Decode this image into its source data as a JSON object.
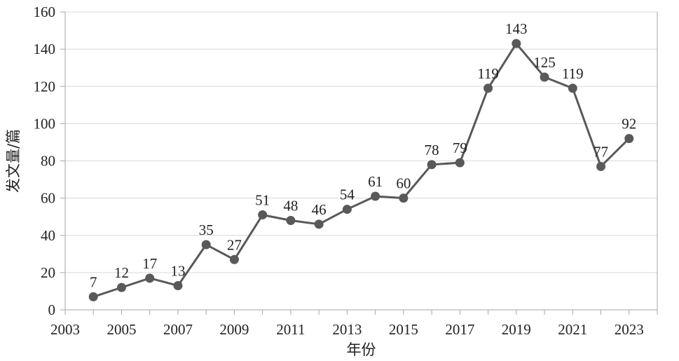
{
  "chart_data": {
    "type": "line",
    "xlabel": "年份",
    "ylabel": "发文量/篇",
    "x": [
      2004,
      2005,
      2006,
      2007,
      2008,
      2009,
      2010,
      2011,
      2012,
      2013,
      2014,
      2015,
      2016,
      2017,
      2018,
      2019,
      2020,
      2021,
      2022,
      2023
    ],
    "series": [
      {
        "values": [
          7,
          12,
          17,
          13,
          35,
          27,
          51,
          48,
          46,
          54,
          61,
          60,
          78,
          79,
          119,
          143,
          125,
          119,
          77,
          92
        ],
        "color": "#595959"
      }
    ],
    "data_labels": [
      "7",
      "12",
      "17",
      "13",
      "35",
      "27",
      "51",
      "48",
      "46",
      "54",
      "61",
      "60",
      "78",
      "79",
      "119",
      "143",
      "125",
      "119",
      "77",
      "92"
    ],
    "xlim": [
      2003,
      2024
    ],
    "ylim": [
      0,
      160
    ],
    "x_ticks": [
      2003,
      2005,
      2007,
      2009,
      2011,
      2013,
      2015,
      2017,
      2019,
      2021,
      2023
    ],
    "y_ticks": [
      0,
      20,
      40,
      60,
      80,
      100,
      120,
      140,
      160
    ],
    "grid": true,
    "legend": "none",
    "colors": {
      "line": "#595959",
      "grid": "#d9d9d9",
      "axis": "#a6a6a6",
      "text": "#222222"
    }
  }
}
